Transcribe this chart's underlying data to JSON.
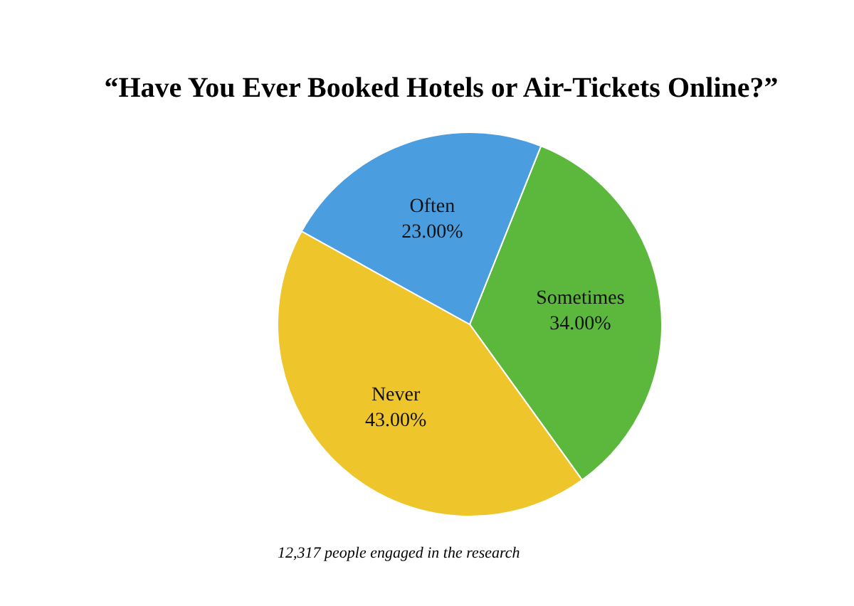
{
  "chart_data": {
    "type": "pie",
    "title": "“Have You Ever Booked Hotels or Air-Tickets Online?”",
    "categories": [
      "Sometimes",
      "Never",
      "Often"
    ],
    "values": [
      34,
      43,
      23
    ],
    "colors": [
      "#5cb83c",
      "#eec52a",
      "#4a9ee0"
    ],
    "value_labels": [
      "34.00%",
      "43.00%",
      "23.00%"
    ],
    "annotations": [
      "12,317 people engaged in the research"
    ]
  }
}
